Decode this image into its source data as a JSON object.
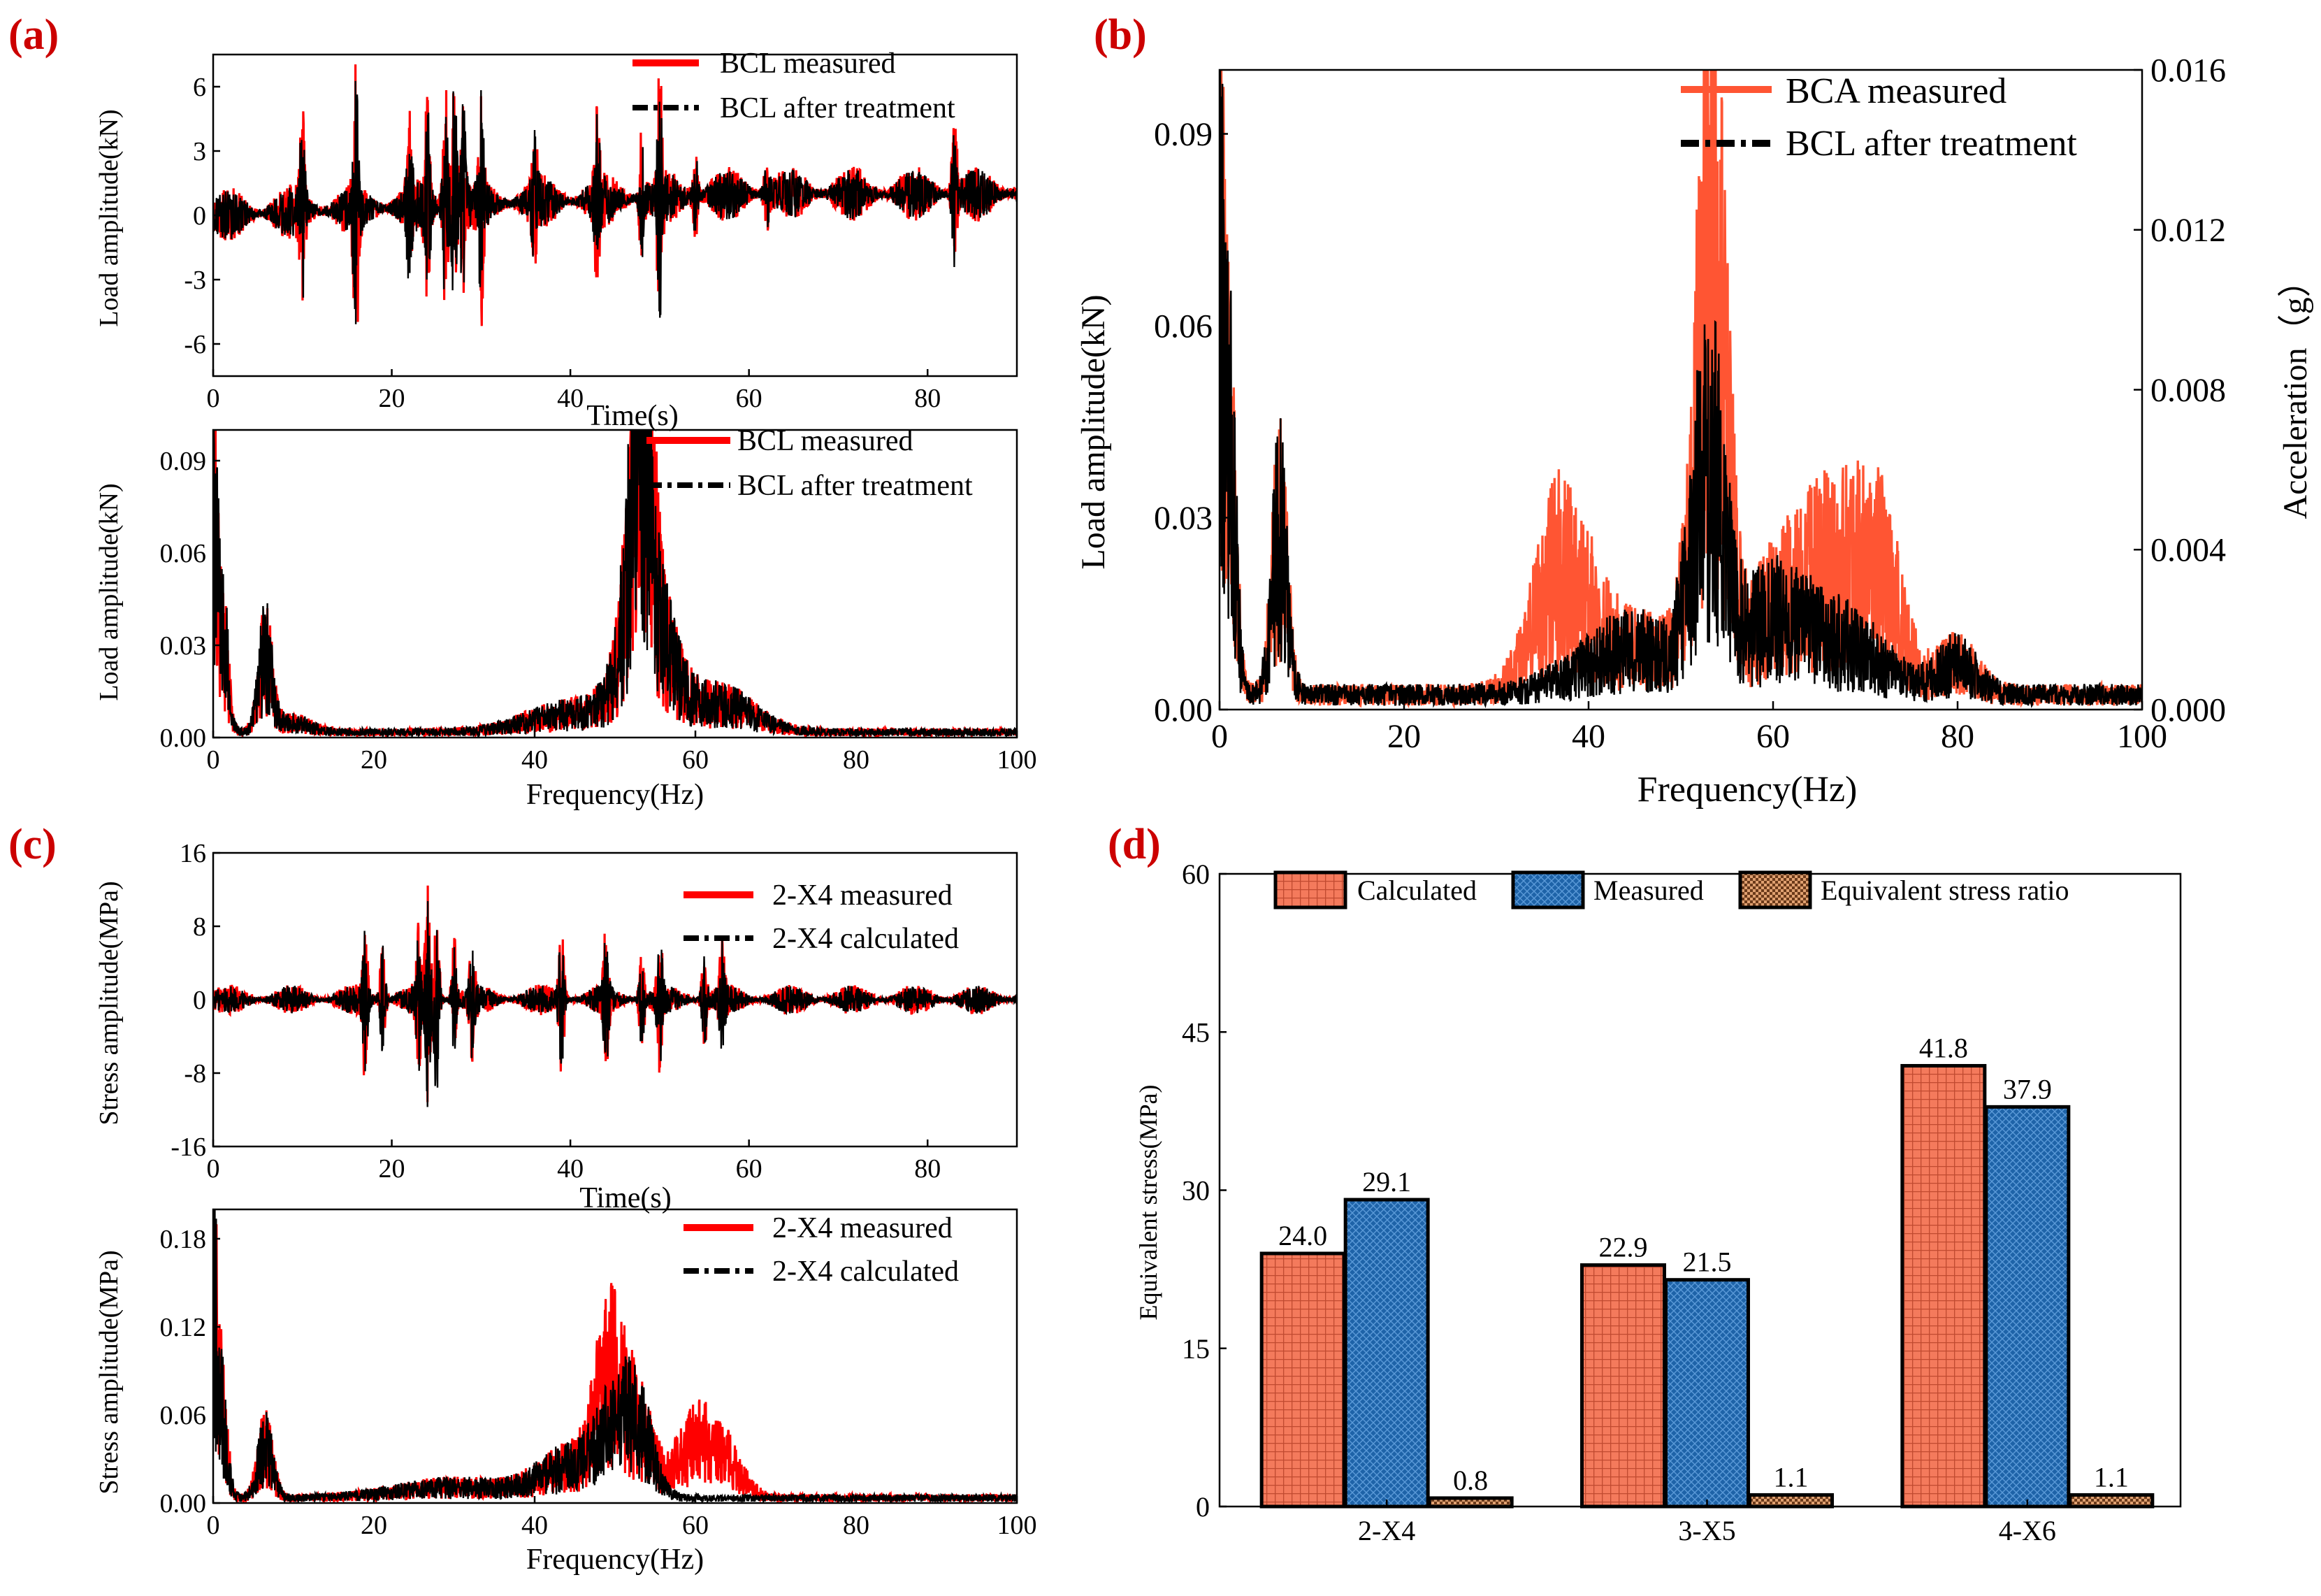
{
  "panel_labels": [
    "(a)",
    "(b)",
    "(c)",
    "(d)"
  ],
  "colors": {
    "measured": "#ff0000",
    "bca_measured": "#ff5533",
    "treated": "#000000",
    "panel_label": "#cc0000",
    "calc_bar": "#f47a5c",
    "meas_bar": "#1e63a8",
    "ratio_bar": "#e0a070"
  },
  "chart_data": [
    {
      "panel": "(a) top",
      "type": "line",
      "xlabel": "Time(s)",
      "ylabel": "Load amplitude(kN)",
      "xlim": [
        0,
        90
      ],
      "ylim": [
        -7.5,
        7.5
      ],
      "xticks": [
        0,
        20,
        40,
        60,
        80
      ],
      "yticks": [
        -6,
        -3,
        0,
        3,
        6
      ],
      "legend": [
        "BCL measured",
        "BCL after treatment"
      ],
      "legend_position": "top-right",
      "signal": "kind:time|start:0|end:90|seed:11|amp:2.0|bursts:10:3.8,16:5.3,22:3.5,24:4.6,26:5.2,27:6.1,28:5.0,30:4.3,36:2.4,43:3.3,48:2.8,50:4.8,54:2.0,62:1.5,83:3.2|drift:1.0"
    },
    {
      "panel": "(a) bottom",
      "type": "line",
      "xlabel": "Frequency(Hz)",
      "ylabel": "Load amplitude(kN)",
      "xlim": [
        0,
        100
      ],
      "ylim": [
        0,
        0.1
      ],
      "xticks": [
        0,
        20,
        40,
        60,
        80,
        100
      ],
      "yticks": [
        0.0,
        0.03,
        0.06,
        0.09
      ],
      "legend": [
        "BCL measured",
        "BCL after treatment"
      ],
      "legend_position": "top-right",
      "signal": "kind:spec|start:0|end:100|seed:21|floor:0.003|peaks:0:0.1:0.5,1:0.065:1,6.5:0.042:1.2,10:0.005:3,45:0.01:8,53:0.086:1.8,54:0.06:4,63:0.015:6|mpeak:53.5:0.08:1.2"
    },
    {
      "panel": "(b)",
      "type": "line",
      "xlabel": "Frequency(Hz)",
      "ylabel": "Load amplitude(kN)",
      "ylabel_right": "Acceleration（g）",
      "xlim": [
        0,
        100
      ],
      "ylim": [
        0,
        0.1
      ],
      "ylim_right": [
        0,
        0.016
      ],
      "xticks": [
        0,
        20,
        40,
        60,
        80,
        100
      ],
      "yticks": [
        0.0,
        0.03,
        0.06,
        0.09
      ],
      "yticks_right": [
        0.0,
        0.004,
        0.008,
        0.012,
        0.016
      ],
      "legend": [
        "BCA measured",
        "BCL after treatment"
      ],
      "legend_position": "top-right",
      "signal": "kind:spec|start:0|end:100|seed:31|floor:0.004|peaks:0:0.1:0.5,1:0.066:1,6.5:0.042:1.2,45:0.012:8,53:0.056:2.5,60:0.018:5,68:0.012:6,80:0.008:3|mpeak:37:0.03:4,53.5:0.055:2,67:0.02:5,72:0.017:3"
    },
    {
      "panel": "(c) top",
      "type": "line",
      "xlabel": "Time(s)",
      "ylabel": "Stress amplitude(MPa)",
      "xlim": [
        0,
        90
      ],
      "ylim": [
        -16,
        16
      ],
      "xticks": [
        0,
        20,
        40,
        60,
        80
      ],
      "yticks": [
        -16,
        -8,
        0,
        8,
        16
      ],
      "legend": [
        "2-X4 measured",
        "2-X4 calculated"
      ],
      "legend_position": "top-right",
      "signal": "kind:time|start:0|end:90|seed:41|amp:2.6|bursts:17:7.5,19:6.0,23:6.5,24:12.0,25:10.5,27:6.0,29:5.5,39:8.5,44:6.5,48:5.0,50:6.5,55:5.0,57:5.5|drift:0"
    },
    {
      "panel": "(c) bottom",
      "type": "line",
      "xlabel": "Frequency(Hz)",
      "ylabel": "Stress amplitude(MPa)",
      "xlim": [
        0,
        100
      ],
      "ylim": [
        0,
        0.2
      ],
      "xticks": [
        0,
        20,
        40,
        60,
        80,
        100
      ],
      "yticks": [
        0.0,
        0.06,
        0.12,
        0.18
      ],
      "legend": [
        "2-X4 measured",
        "2-X4 calculated"
      ],
      "legend_position": "top-right",
      "signal": "kind:spec|start:0|end:100|seed:51|floor:0.006|peaks:0:0.2:0.6,1:0.1:1,6.5:0.06:1.3,30:0.012:10,45:0.035:6,50:0.055:3,53:0.06:2.5|mpeak:49:0.07:2,60:0.06:3.5,64:0.03:3"
    },
    {
      "panel": "(d)",
      "type": "bar",
      "title": "",
      "xlabel": "",
      "ylabel": "Equivalent stress(MPa)",
      "ylim": [
        0,
        60
      ],
      "yticks": [
        0,
        15,
        30,
        45,
        60
      ],
      "categories": [
        "2-X4",
        "3-X5",
        "4-X6"
      ],
      "series": [
        {
          "name": "Calculated",
          "values": [
            24.0,
            22.9,
            41.8
          ]
        },
        {
          "name": "Measured",
          "values": [
            29.1,
            21.5,
            37.9
          ]
        },
        {
          "name": "Equivalent stress ratio",
          "values": [
            0.8,
            1.1,
            1.1
          ]
        }
      ],
      "value_labels": [
        [
          "24.0",
          "22.9",
          "41.8"
        ],
        [
          "29.1",
          "21.5",
          "37.9"
        ],
        [
          "0.8",
          "1.1",
          "1.1"
        ]
      ],
      "legend_position": "top"
    }
  ]
}
